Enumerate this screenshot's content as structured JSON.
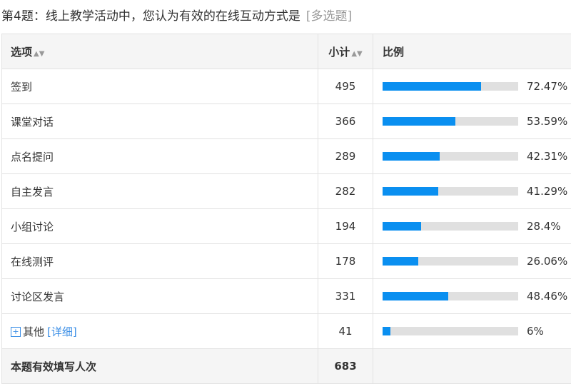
{
  "question": {
    "title": "第4题：线上教学活动中，您认为有效的在线互动方式是",
    "type_tag": "[多选题]"
  },
  "table": {
    "headers": {
      "option": "选项",
      "count": "小计",
      "ratio": "比例"
    },
    "rows": [
      {
        "label": "签到",
        "count": "495",
        "percent": "72.47%",
        "value": 72.47
      },
      {
        "label": "课堂对话",
        "count": "366",
        "percent": "53.59%",
        "value": 53.59
      },
      {
        "label": "点名提问",
        "count": "289",
        "percent": "42.31%",
        "value": 42.31
      },
      {
        "label": "自主发言",
        "count": "282",
        "percent": "41.29%",
        "value": 41.29
      },
      {
        "label": "小组讨论",
        "count": "194",
        "percent": "28.4%",
        "value": 28.4
      },
      {
        "label": "在线测评",
        "count": "178",
        "percent": "26.06%",
        "value": 26.06
      },
      {
        "label": "讨论区发言",
        "count": "331",
        "percent": "48.46%",
        "value": 48.46
      }
    ],
    "other": {
      "label": "其他",
      "detail_link": "[详细]",
      "count": "41",
      "percent": "6%",
      "value": 6,
      "expand_icon": "plus-square-icon"
    },
    "footer": {
      "label": "本题有效填写人次",
      "count": "683"
    },
    "colors": {
      "bar_fill": "#0a8ff0",
      "bar_track": "#e0e0e0",
      "link": "#3a8ee6"
    }
  }
}
